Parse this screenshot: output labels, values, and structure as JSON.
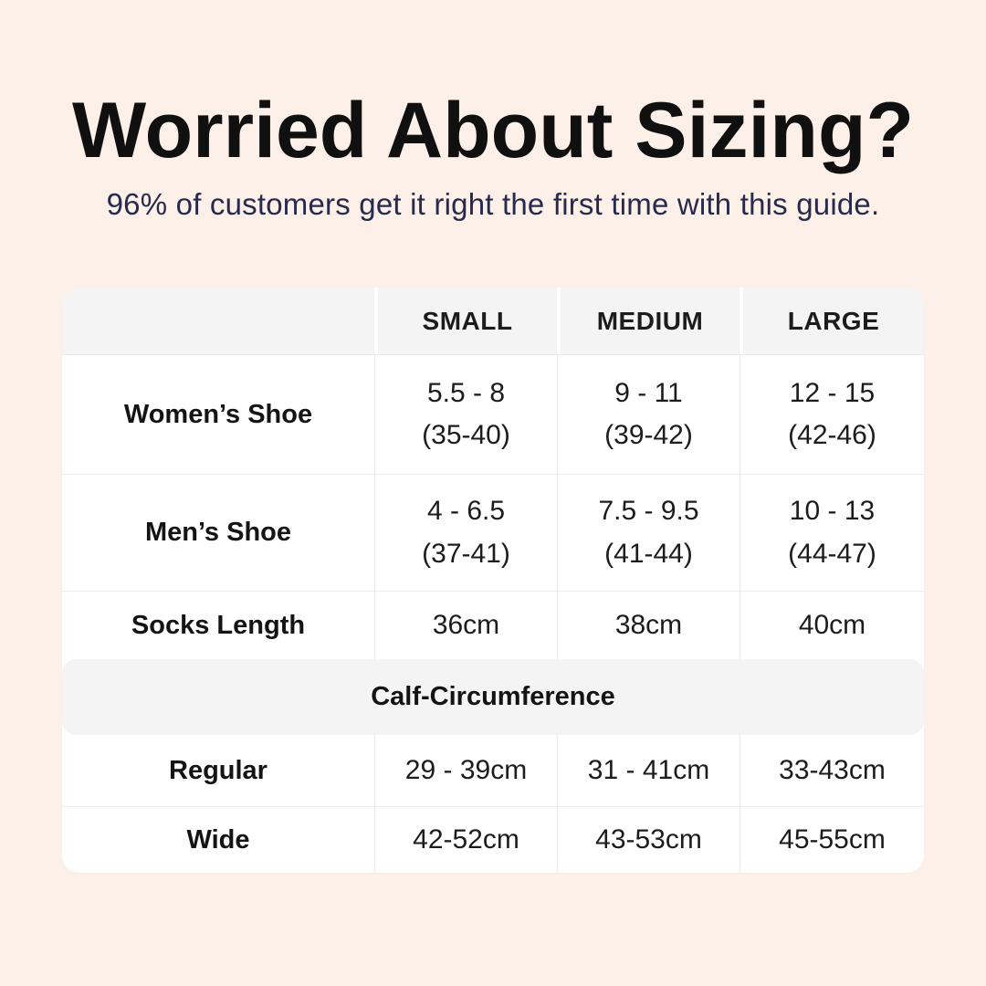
{
  "page": {
    "background_color": "#fdf0e9",
    "card_color": "#ffffff",
    "band_color": "#f4f4f4",
    "title_color": "#101010",
    "subtitle_color": "#262a4d"
  },
  "hero": {
    "title": "Worried About Sizing?",
    "subtitle": "96% of customers get it right the first time with this guide."
  },
  "table": {
    "columns": [
      "",
      "SMALL",
      "MEDIUM",
      "LARGE"
    ],
    "shoe_rows": [
      {
        "label": "Women’s Shoe",
        "small": [
          "5.5 - 8",
          "(35-40)"
        ],
        "medium": [
          "9 - 11",
          "(39-42)"
        ],
        "large": [
          "12 - 15",
          "(42-46)"
        ]
      },
      {
        "label": "Men’s Shoe",
        "small": [
          "4 - 6.5",
          "(37-41)"
        ],
        "medium": [
          "7.5 - 9.5",
          "(41-44)"
        ],
        "large": [
          "10 - 13",
          "(44-47)"
        ]
      },
      {
        "label": "Socks Length",
        "small": [
          "36cm"
        ],
        "medium": [
          "38cm"
        ],
        "large": [
          "40cm"
        ]
      }
    ],
    "band_label": "Calf-Circumference",
    "calf_rows": [
      {
        "label": "Regular",
        "small": [
          "29 - 39cm"
        ],
        "medium": [
          "31 - 41cm"
        ],
        "large": [
          "33-43cm"
        ]
      },
      {
        "label": "Wide",
        "small": [
          "42-52cm"
        ],
        "medium": [
          "43-53cm"
        ],
        "large": [
          "45-55cm"
        ]
      }
    ]
  }
}
